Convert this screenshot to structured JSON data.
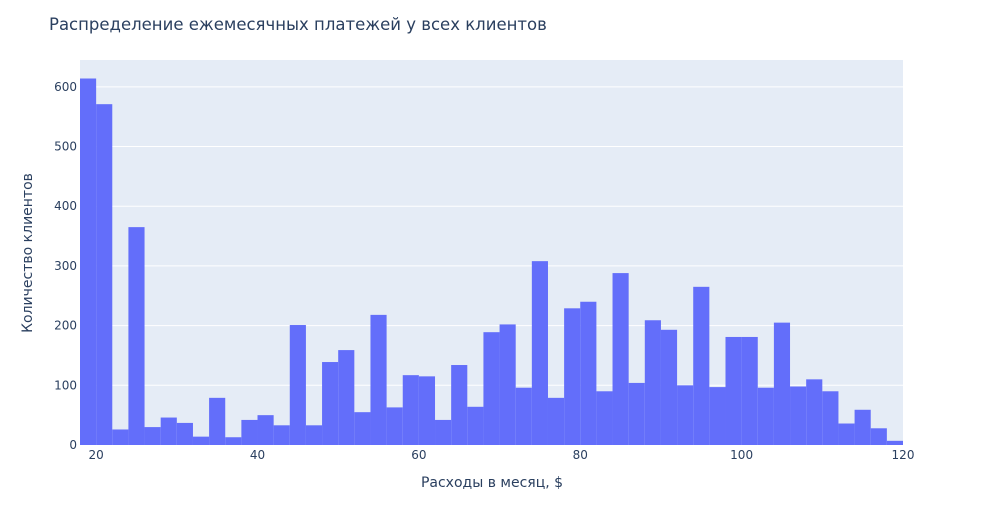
{
  "chart_data": {
    "type": "bar",
    "title": "Распределение ежемесячных платежей у всех клиентов",
    "xlabel": "Расходы в месяц, $",
    "ylabel": "Количество клиентов",
    "bin_width": 2,
    "x_start": 18,
    "xlim": [
      18,
      120
    ],
    "ylim": [
      0,
      645
    ],
    "x_ticks": [
      20,
      40,
      60,
      80,
      100,
      120
    ],
    "y_ticks": [
      0,
      100,
      200,
      300,
      400,
      500,
      600
    ],
    "grid": true,
    "colors": {
      "bar": "#636efa",
      "plot_background": "#e5ecf6",
      "gridline": "#ffffff",
      "text": "#2a3f5f"
    },
    "values": [
      614,
      571,
      26,
      365,
      30,
      46,
      37,
      14,
      79,
      13,
      42,
      50,
      33,
      201,
      33,
      139,
      159,
      55,
      218,
      63,
      117,
      115,
      42,
      134,
      64,
      189,
      202,
      96,
      308,
      79,
      229,
      240,
      90,
      288,
      104,
      209,
      193,
      100,
      265,
      97,
      181,
      181,
      96,
      205,
      98,
      110,
      90,
      36,
      59,
      28,
      7
    ]
  }
}
